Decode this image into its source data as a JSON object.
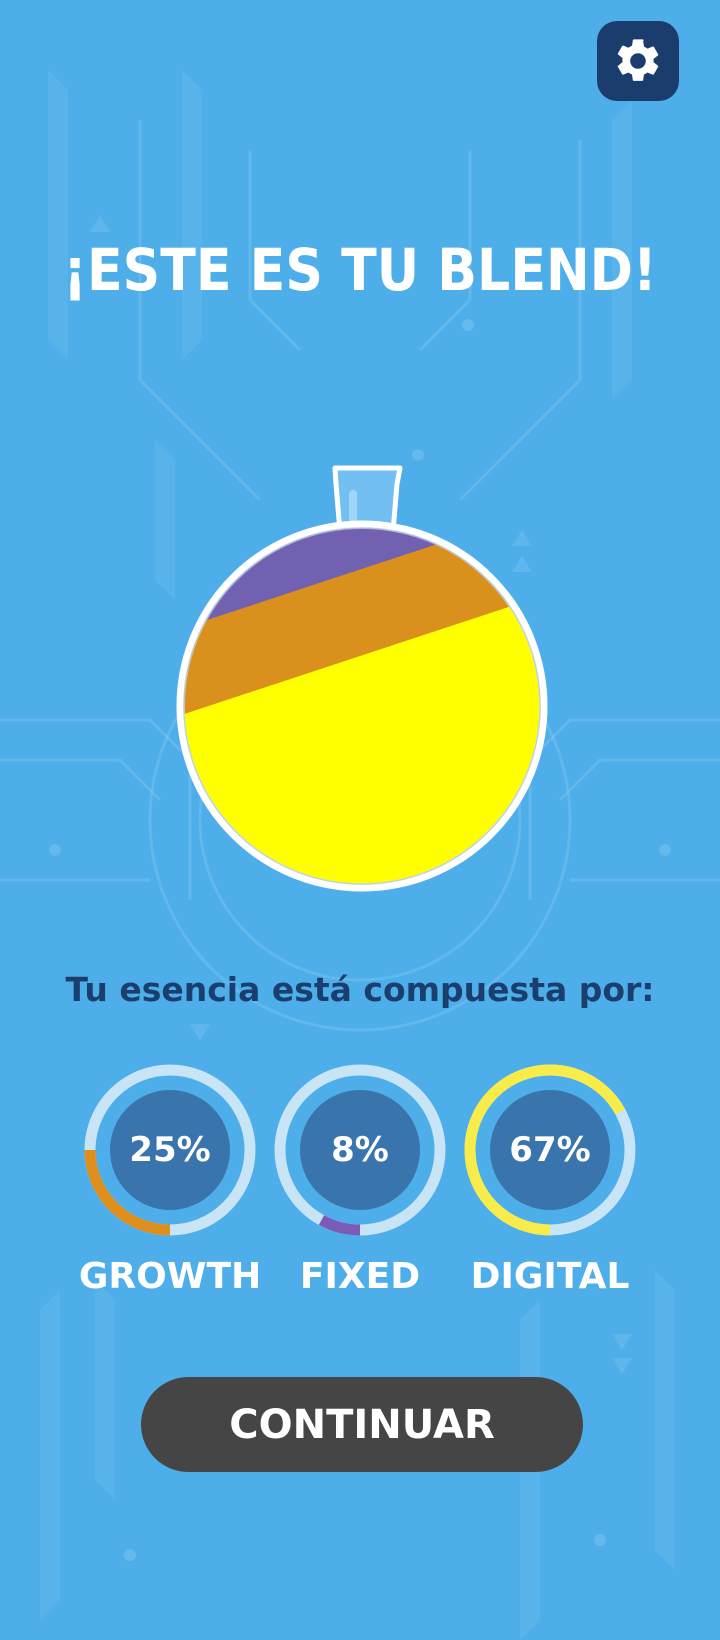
{
  "header": {
    "settings_icon": "gear-icon"
  },
  "title": "¡ESTE ES TU BLEND!",
  "blend": {
    "segments": [
      {
        "name": "DIGITAL",
        "fraction": 0.67,
        "color": "#ffff00"
      },
      {
        "name": "GROWTH",
        "fraction": 0.25,
        "color": "#da901c"
      },
      {
        "name": "FIXED",
        "fraction": 0.08,
        "color": "#7260b0"
      }
    ]
  },
  "subtitle": "Tu esencia está compuesta por:",
  "stats": [
    {
      "label": "GROWTH",
      "percent_text": "25%",
      "value": 0.25,
      "color": "#df8f1c"
    },
    {
      "label": "FIXED",
      "percent_text": "8%",
      "value": 0.08,
      "color": "#7a5cb6"
    },
    {
      "label": "DIGITAL",
      "percent_text": "67%",
      "value": 0.67,
      "color": "#f8ec4a"
    }
  ],
  "continue_label": "CONTINUAR",
  "colors": {
    "background": "#4daeea",
    "ring_track": "#c8e4f7",
    "ring_center": "#3a74ad",
    "button": "#454545",
    "settings_bg": "#1b3d6e",
    "subtitle_text": "#1a3f6f"
  }
}
